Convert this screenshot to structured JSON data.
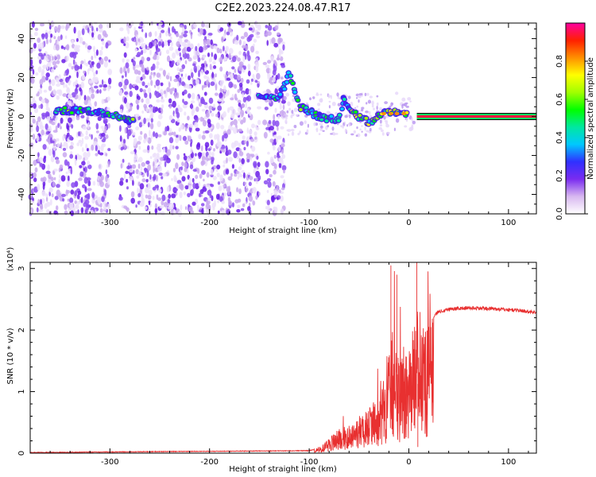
{
  "title": "C2E2.2023.224.08.47.R17",
  "chart_data": [
    {
      "type": "heatmap",
      "xlabel": "Height of straight line (km)",
      "ylabel": "Frequency (Hz)",
      "xlim": [
        -380,
        128
      ],
      "ylim": [
        -50,
        48
      ],
      "xticks": [
        -300,
        -200,
        -100,
        0,
        100
      ],
      "yticks": [
        -40,
        -20,
        0,
        20,
        40
      ],
      "colorbar": {
        "label": "Normalized spectral amplitude",
        "range": [
          0,
          1
        ],
        "ticks": [
          0.0,
          0.2,
          0.4,
          0.6,
          0.8
        ],
        "tick_labels": [
          "0.0",
          "0.2",
          "0.4",
          "0.6",
          "0.8"
        ],
        "colormap": [
          "#ffffff",
          "#d8b8f0",
          "#7a2cf0",
          "#3030ff",
          "#00c8ff",
          "#00e8a0",
          "#00ff00",
          "#a0ff00",
          "#ffff00",
          "#ff9000",
          "#ff2000",
          "#ff00a0"
        ]
      },
      "features": {
        "noise_regions_km": [
          [
            -380,
            -300
          ],
          [
            -290,
            -150
          ],
          [
            -145,
            -125
          ]
        ],
        "signal_track": [
          {
            "x": -355,
            "y": 3
          },
          {
            "x": -330,
            "y": 3
          },
          {
            "x": -310,
            "y": 2
          },
          {
            "x": -290,
            "y": 0
          },
          {
            "x": -275,
            "y": -3
          },
          {
            "x": -150,
            "y": 10
          },
          {
            "x": -130,
            "y": 9
          },
          {
            "x": -120,
            "y": 22
          },
          {
            "x": -110,
            "y": 5
          },
          {
            "x": -90,
            "y": 0
          },
          {
            "x": -70,
            "y": -2
          },
          {
            "x": -65,
            "y": 10
          },
          {
            "x": -60,
            "y": 5
          },
          {
            "x": -50,
            "y": 0
          },
          {
            "x": -40,
            "y": -3
          },
          {
            "x": -30,
            "y": 1
          },
          {
            "x": -20,
            "y": 2
          },
          {
            "x": -10,
            "y": 2
          },
          {
            "x": 0,
            "y": 1
          }
        ],
        "steady_line": {
          "x_start": 8,
          "x_end": 128,
          "y": 0
        }
      }
    },
    {
      "type": "line",
      "xlabel": "Height of straight line (km)",
      "ylabel": "SNR (10 * v/v)",
      "y_multiplier": "(x10⁴)",
      "xlim": [
        -380,
        128
      ],
      "ylim": [
        0,
        3.1
      ],
      "xticks": [
        -300,
        -200,
        -100,
        0,
        100
      ],
      "yticks": [
        0,
        1,
        2,
        3
      ],
      "color": "#e83030",
      "series": [
        {
          "x": [
            -380,
            -300,
            -200,
            -100,
            -95,
            -90,
            -80,
            -70,
            -60,
            -50,
            -40,
            -30,
            -25,
            -20,
            -15,
            -12,
            -10,
            -5,
            0,
            3,
            6,
            8,
            10,
            15,
            20,
            30,
            40,
            50,
            60,
            80,
            100,
            110,
            120,
            128
          ],
          "y": [
            0.01,
            0.02,
            0.03,
            0.04,
            0.06,
            0.08,
            0.25,
            0.4,
            0.45,
            0.6,
            0.75,
            0.95,
            1.2,
            1.6,
            2.2,
            1.4,
            1.7,
            1.8,
            1.9,
            2.0,
            2.1,
            2.6,
            1.9,
            2.05,
            2.15,
            2.3,
            2.34,
            2.35,
            2.36,
            2.35,
            2.33,
            2.32,
            2.3,
            2.29
          ]
        }
      ]
    }
  ]
}
